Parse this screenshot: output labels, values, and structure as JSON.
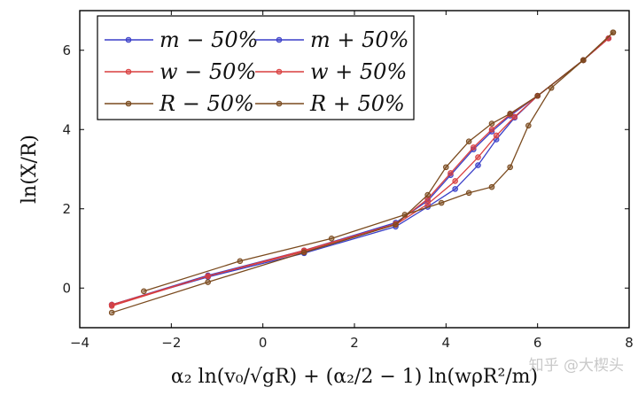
{
  "chart_data": {
    "type": "line",
    "title": "",
    "xlabel": "α₂ ln(v₀/√gR) + (α₂/2 − 1) ln(wρR²/m)",
    "ylabel": "ln(X/R)",
    "xlim": [
      -4,
      8
    ],
    "ylim": [
      -1,
      7
    ],
    "xticks": [
      -4,
      -2,
      0,
      2,
      4,
      6,
      8
    ],
    "yticks": [
      0,
      2,
      4,
      6
    ],
    "grid": false,
    "legend_position": "top-left",
    "series": [
      {
        "name": "m − 50%",
        "color": "#3a3fc8",
        "x": [
          -3.3,
          -1.2,
          0.9,
          2.9,
          3.6,
          4.1,
          4.6,
          5.0,
          5.4,
          6.0,
          7.0,
          7.55
        ],
        "y": [
          -0.42,
          0.32,
          0.95,
          1.65,
          2.2,
          2.85,
          3.5,
          3.95,
          4.35,
          4.85,
          5.75,
          6.3
        ]
      },
      {
        "name": "m + 50%",
        "color": "#3a3fc8",
        "x": [
          -3.3,
          -1.2,
          0.9,
          2.9,
          3.6,
          4.2,
          4.7,
          5.1,
          5.5,
          6.0,
          7.0,
          7.55
        ],
        "y": [
          -0.42,
          0.28,
          0.88,
          1.55,
          2.05,
          2.5,
          3.1,
          3.75,
          4.3,
          4.85,
          5.75,
          6.3
        ]
      },
      {
        "name": "w − 50%",
        "color": "#d93f3f",
        "x": [
          -3.3,
          -1.2,
          0.9,
          2.9,
          3.6,
          4.2,
          4.7,
          5.1,
          5.5,
          6.0,
          7.0,
          7.55
        ],
        "y": [
          -0.45,
          0.3,
          0.92,
          1.6,
          2.12,
          2.7,
          3.3,
          3.85,
          4.32,
          4.85,
          5.75,
          6.3
        ]
      },
      {
        "name": "w + 50%",
        "color": "#d93f3f",
        "x": [
          -3.3,
          -1.2,
          0.9,
          2.9,
          3.6,
          4.1,
          4.6,
          5.0,
          5.4,
          6.0,
          7.0,
          7.55
        ],
        "y": [
          -0.42,
          0.3,
          0.95,
          1.62,
          2.25,
          2.9,
          3.55,
          4.0,
          4.38,
          4.85,
          5.75,
          6.3
        ]
      },
      {
        "name": "R − 50%",
        "color": "#7a4a1e",
        "x": [
          -3.3,
          -1.2,
          0.9,
          2.9,
          3.6,
          4.0,
          4.5,
          5.0,
          5.4,
          6.0,
          7.0,
          7.65
        ],
        "y": [
          -0.62,
          0.15,
          0.9,
          1.6,
          2.35,
          3.05,
          3.7,
          4.15,
          4.4,
          4.85,
          5.75,
          6.45
        ]
      },
      {
        "name": "R + 50%",
        "color": "#7a4a1e",
        "x": [
          -2.6,
          -0.5,
          1.5,
          3.1,
          3.9,
          4.5,
          5.0,
          5.4,
          5.8,
          6.3,
          7.0,
          7.65
        ],
        "y": [
          -0.08,
          0.68,
          1.25,
          1.85,
          2.15,
          2.4,
          2.55,
          3.05,
          4.1,
          5.05,
          5.75,
          6.45
        ]
      }
    ]
  },
  "watermark": "知乎 @大楔头"
}
